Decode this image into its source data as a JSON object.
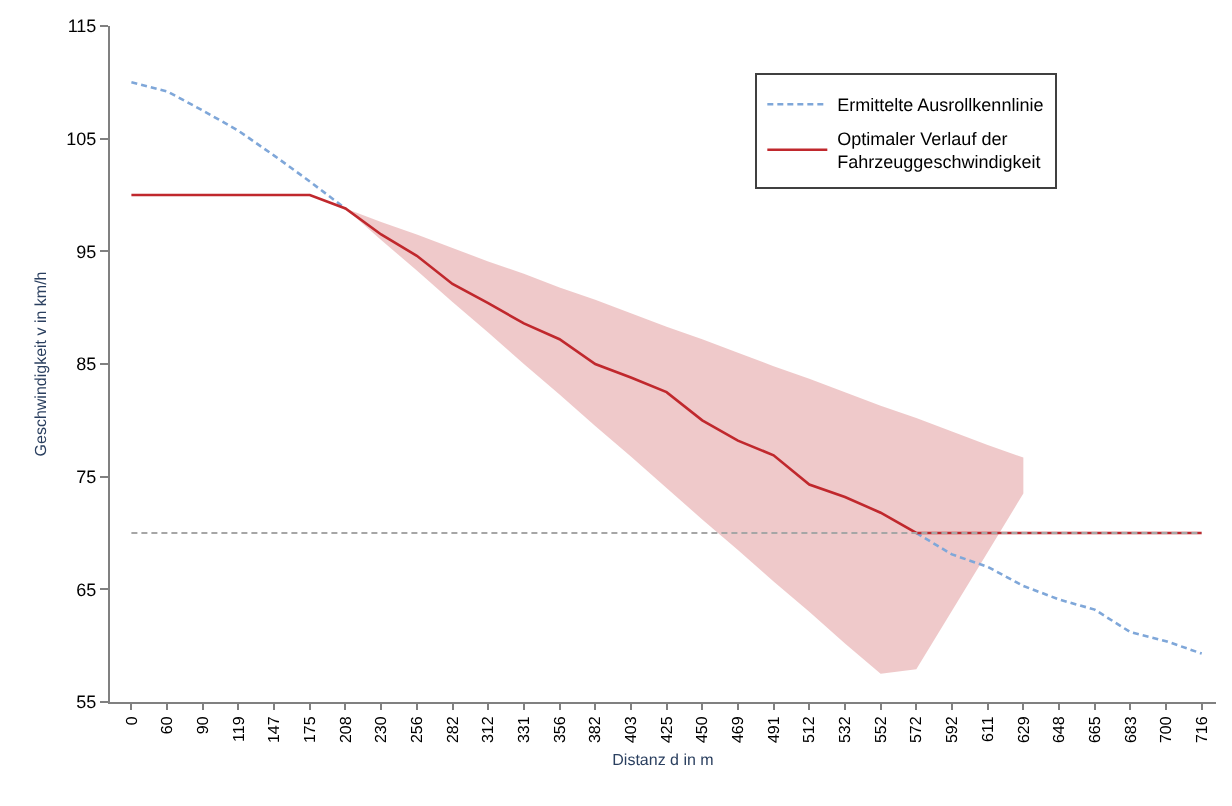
{
  "chart_data": {
    "type": "line",
    "xlabel": "Distanz d in m",
    "ylabel": "Geschwindigkeit v in km/h",
    "categories": [
      "0",
      "60",
      "90",
      "119",
      "147",
      "175",
      "208",
      "230",
      "256",
      "282",
      "312",
      "331",
      "356",
      "382",
      "403",
      "425",
      "450",
      "469",
      "491",
      "512",
      "532",
      "552",
      "572",
      "592",
      "611",
      "629",
      "648",
      "665",
      "683",
      "700",
      "716"
    ],
    "ylim": [
      55,
      115
    ],
    "yticks": [
      55,
      65,
      75,
      85,
      95,
      105,
      115
    ],
    "legend": "top right",
    "marker": "none",
    "series": [
      {
        "name": "Ermittelte Ausrollkennlinie",
        "color": "#7fa7d9",
        "line_style": "dashed",
        "values": [
          110,
          109.2,
          107.5,
          105.7,
          103.5,
          101.2,
          98.8,
          null,
          null,
          null,
          null,
          null,
          null,
          null,
          null,
          null,
          null,
          null,
          null,
          null,
          null,
          null,
          70,
          68.1,
          67,
          65.3,
          64.1,
          63.2,
          61.2,
          60.4,
          59.3
        ]
      },
      {
        "name": "Optimaler Verlauf der\nFahrzeuggeschwindigkeit",
        "color": "#c0282d",
        "line_style": "solid",
        "values": [
          100,
          100,
          100,
          100,
          100,
          100,
          98.8,
          96.5,
          94.6,
          92.1,
          90.4,
          88.6,
          87.2,
          85,
          83.8,
          82.5,
          80,
          78.2,
          76.9,
          74.3,
          73.2,
          71.8,
          70,
          70,
          70,
          70,
          70,
          70,
          70,
          70,
          70
        ],
        "lower": [
          null,
          null,
          null,
          null,
          null,
          null,
          98.8,
          96,
          93.3,
          90.5,
          87.8,
          85,
          82.3,
          79.5,
          76.8,
          74,
          71.2,
          68.5,
          65.7,
          63,
          60.2,
          57.5,
          57.9,
          63.1,
          68.3,
          73.5,
          null,
          null,
          null,
          null,
          null
        ],
        "upper": [
          null,
          null,
          null,
          null,
          null,
          null,
          98.8,
          97.6,
          96.5,
          95.3,
          94.1,
          93,
          91.8,
          90.7,
          89.5,
          88.3,
          87.2,
          86,
          84.8,
          83.7,
          82.5,
          81.3,
          80.2,
          79,
          77.8,
          76.7,
          null,
          null,
          null,
          null,
          null
        ]
      }
    ],
    "ref_lines": [
      {
        "axis": "y",
        "value": 70,
        "color": "#a6a6a6",
        "line_style": "dashed"
      }
    ]
  }
}
